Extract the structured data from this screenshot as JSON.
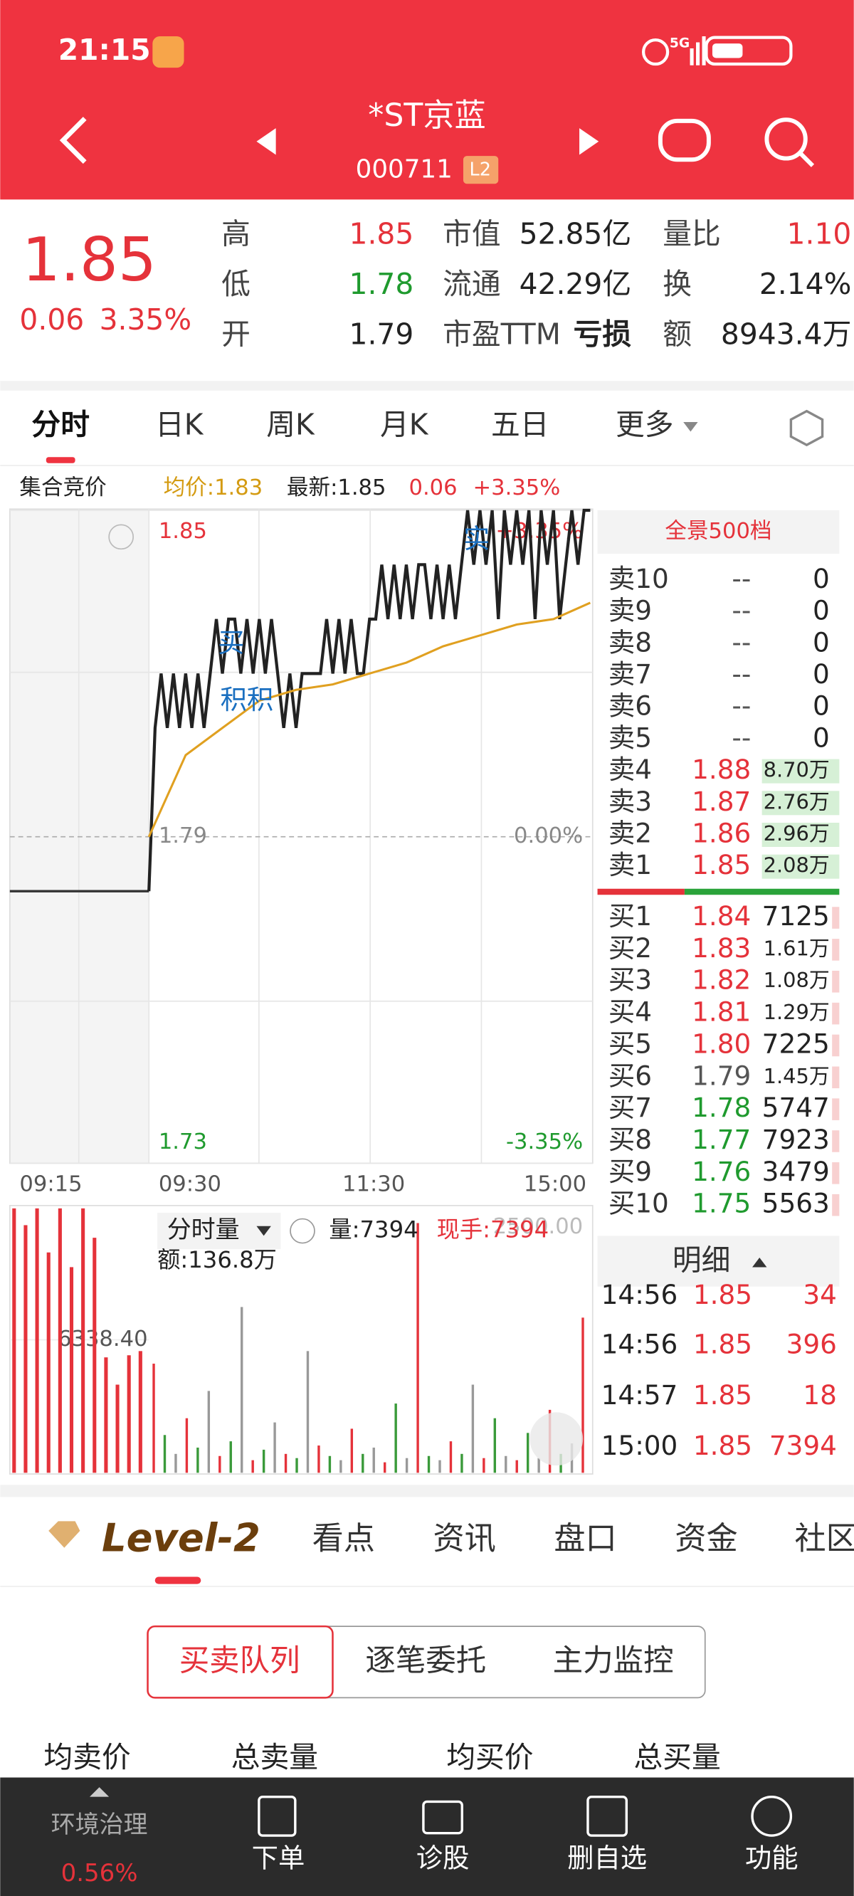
{
  "status_bar": {
    "time": "21:15",
    "network": "5G"
  },
  "header": {
    "title": "*ST京蓝",
    "code": "000711",
    "badge": "L2"
  },
  "quote": {
    "price": "1.85",
    "change": "0.06",
    "change_pct": "3.35%",
    "stats": [
      [
        "高",
        "1.85",
        "市值",
        "52.85亿",
        "量比",
        "1.10"
      ],
      [
        "低",
        "1.78",
        "流通",
        "42.29亿",
        "换",
        "2.14%"
      ],
      [
        "开",
        "1.79",
        "市盈TTM",
        "亏损",
        "额",
        "8943.4万"
      ]
    ]
  },
  "tabs": [
    "分时",
    "日K",
    "周K",
    "月K",
    "五日",
    "更多"
  ],
  "info_bar": [
    "集合竞价",
    "均价:1.83",
    "最新:1.85",
    "0.06",
    "+3.35%"
  ],
  "intraday": {
    "ylim": [
      1.73,
      1.85
    ],
    "yticks": [
      1.85,
      1.79,
      1.73
    ],
    "right_labels": [
      "+3.35%",
      "0.00%",
      "-3.35%"
    ],
    "times": [
      "09:15",
      "09:30",
      "11:30",
      "15:00"
    ],
    "annotations": [
      "买",
      "积积",
      "实"
    ],
    "auction_price": [
      1.78,
      1.78
    ],
    "price": [
      1.78,
      1.81,
      1.82,
      1.81,
      1.82,
      1.81,
      1.82,
      1.81,
      1.82,
      1.81,
      1.82,
      1.83,
      1.82,
      1.83,
      1.83,
      1.82,
      1.83,
      1.82,
      1.83,
      1.82,
      1.83,
      1.82,
      1.81,
      1.82,
      1.81,
      1.82,
      1.82,
      1.82,
      1.82,
      1.83,
      1.82,
      1.83,
      1.82,
      1.83,
      1.82,
      1.82,
      1.83,
      1.83,
      1.84,
      1.83,
      1.84,
      1.83,
      1.84,
      1.83,
      1.84,
      1.84,
      1.83,
      1.84,
      1.83,
      1.84,
      1.83,
      1.84,
      1.85,
      1.84,
      1.85,
      1.84,
      1.85,
      1.83,
      1.85,
      1.84,
      1.85,
      1.84,
      1.85,
      1.83,
      1.85,
      1.84,
      1.85,
      1.83,
      1.84,
      1.85,
      1.84,
      1.85,
      1.85
    ],
    "avg": [
      1.79,
      1.805,
      1.81,
      1.815,
      1.817,
      1.818,
      1.82,
      1.822,
      1.825,
      1.827,
      1.829,
      1.83,
      1.833
    ]
  },
  "volume": {
    "ylim": [
      0,
      12676.8
    ],
    "yticks": [
      {
        "value": 6338.4,
        "label": "6338.40"
      }
    ],
    "label": "分时量",
    "volume": "量:7394",
    "current": "现手:7394",
    "top_label": "2500.00",
    "amount": "额:136.8万",
    "auction": [
      12600,
      11800,
      12600,
      10500,
      12600,
      9800,
      12600,
      11200,
      5500,
      4200,
      5600,
      5800
    ],
    "values": [
      5200,
      1800,
      900,
      2600,
      1200,
      3900,
      800,
      1500,
      7900,
      600,
      1100,
      2400,
      900,
      700,
      5800,
      1300,
      800,
      600,
      2100,
      900,
      1200,
      500,
      3300,
      700,
      11900,
      800,
      600,
      1500,
      900,
      4200,
      700,
      2600,
      800,
      600,
      1900,
      700,
      3000,
      900,
      1400,
      7394
    ]
  },
  "order_book": {
    "title": "全景500档",
    "asks": [
      {
        "label": "卖10",
        "price": "--",
        "volume": "0"
      },
      {
        "label": "卖9",
        "price": "--",
        "volume": "0"
      },
      {
        "label": "卖8",
        "price": "--",
        "volume": "0"
      },
      {
        "label": "卖7",
        "price": "--",
        "volume": "0"
      },
      {
        "label": "卖6",
        "price": "--",
        "volume": "0"
      },
      {
        "label": "卖5",
        "price": "--",
        "volume": "0"
      },
      {
        "label": "卖4",
        "price": "1.88",
        "volume": "8.70万"
      },
      {
        "label": "卖3",
        "price": "1.87",
        "volume": "2.76万"
      },
      {
        "label": "卖2",
        "price": "1.86",
        "volume": "2.96万"
      },
      {
        "label": "卖1",
        "price": "1.85",
        "volume": "2.08万"
      }
    ],
    "bids": [
      {
        "label": "买1",
        "price": "1.84",
        "volume": "7125"
      },
      {
        "label": "买2",
        "price": "1.83",
        "volume": "1.61万"
      },
      {
        "label": "买3",
        "price": "1.82",
        "volume": "1.08万"
      },
      {
        "label": "买4",
        "price": "1.81",
        "volume": "1.29万"
      },
      {
        "label": "买5",
        "price": "1.80",
        "volume": "7225"
      },
      {
        "label": "买6",
        "price": "1.79",
        "volume": "1.45万"
      },
      {
        "label": "买7",
        "price": "1.78",
        "volume": "5747"
      },
      {
        "label": "买8",
        "price": "1.77",
        "volume": "7923"
      },
      {
        "label": "买9",
        "price": "1.76",
        "volume": "3479"
      },
      {
        "label": "买10",
        "price": "1.75",
        "volume": "5563"
      }
    ]
  },
  "trades": {
    "title": "明细",
    "rows": [
      [
        "14:56",
        "1.85",
        "34"
      ],
      [
        "14:56",
        "1.85",
        "396"
      ],
      [
        "14:57",
        "1.85",
        "18"
      ],
      [
        "15:00",
        "1.85",
        "7394"
      ]
    ]
  },
  "level2": {
    "brand": "Level-2",
    "tabs": [
      "看点",
      "资讯",
      "盘口",
      "资金",
      "社区"
    ]
  },
  "segments": [
    "买卖队列",
    "逐笔委托",
    "主力监控"
  ],
  "columns": [
    "均卖价",
    "总卖量",
    "均买价",
    "总买量"
  ],
  "bottom_nav": {
    "sector": "环境治理",
    "sector_pct": "0.56%",
    "items": [
      "下单",
      "诊股",
      "删自选",
      "功能"
    ]
  }
}
